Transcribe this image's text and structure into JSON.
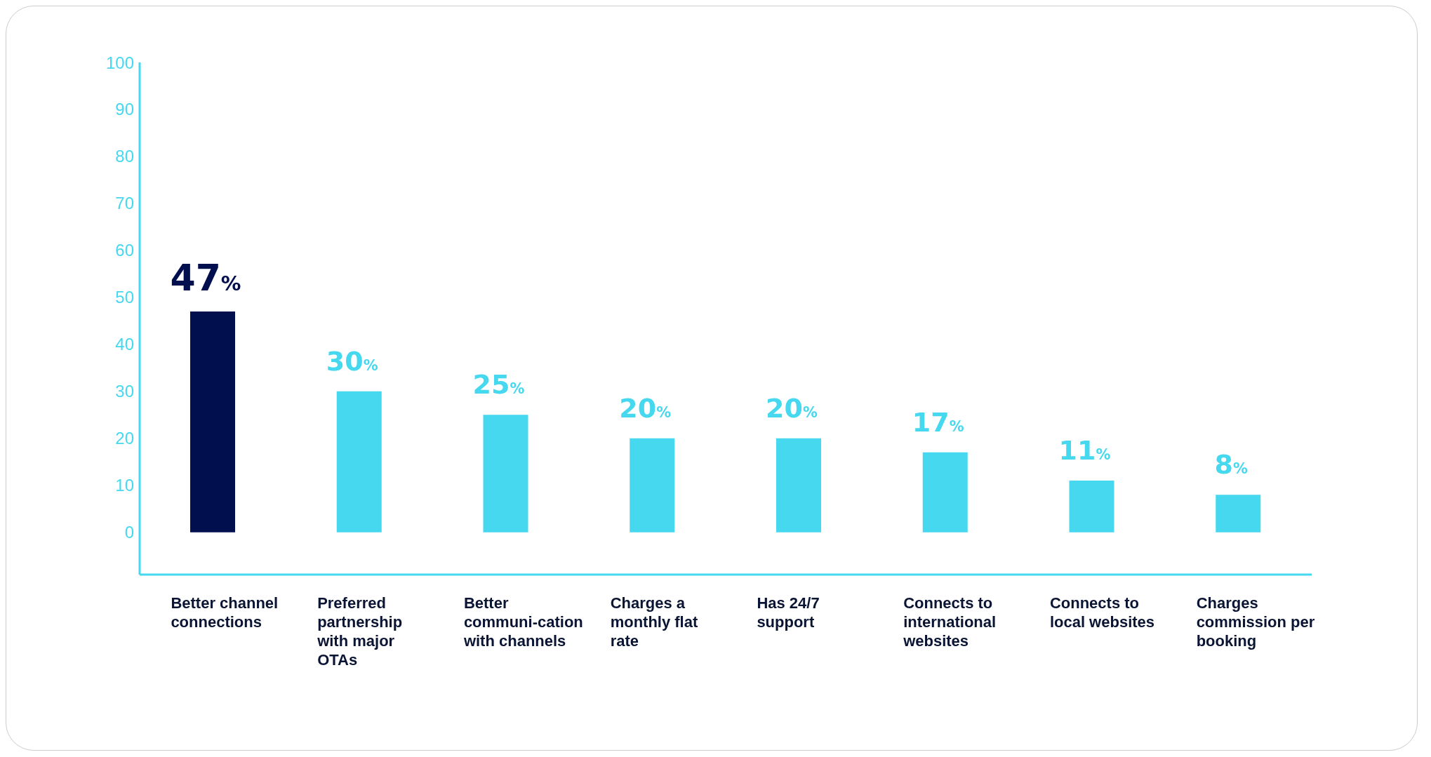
{
  "chart_data": {
    "type": "bar",
    "categories": [
      "Better channel connections",
      "Preferred partnership with major OTAs",
      "Better communi-cation with channels",
      "Charges a monthly flat rate",
      "Has 24/7 support",
      "Connects to international websites",
      "Connects to local websites",
      "Charges commission per booking"
    ],
    "values": [
      47,
      30,
      25,
      20,
      20,
      17,
      11,
      8
    ],
    "colors": [
      "#020f4f",
      "#45d8ee",
      "#45d8ee",
      "#45d8ee",
      "#45d8ee",
      "#45d8ee",
      "#45d8ee",
      "#45d8ee"
    ],
    "value_labels": [
      "47%",
      "30%",
      "25%",
      "20%",
      "20%",
      "17%",
      "11%",
      "8%"
    ],
    "ylim": [
      -9,
      100
    ],
    "yticks": [
      0,
      10,
      20,
      30,
      40,
      50,
      60,
      70,
      80,
      90,
      100
    ],
    "grid": false,
    "legend": false
  }
}
